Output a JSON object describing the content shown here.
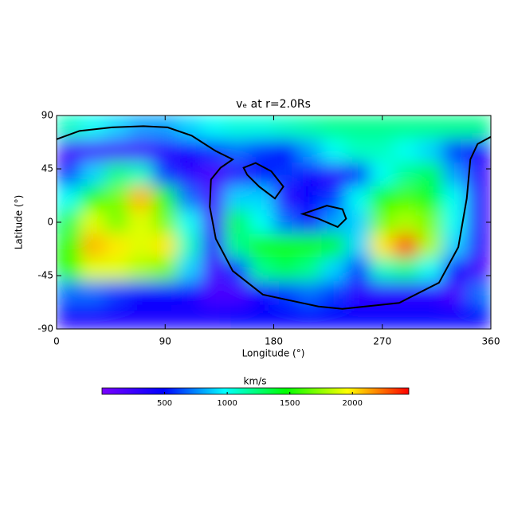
{
  "chart_data": {
    "type": "heatmap",
    "title": "vₑ at r=2.0Rs",
    "x_label": "Longitude (°)",
    "y_label": "Latitude (°)",
    "x": [
      10,
      30,
      50,
      70,
      90,
      110,
      130,
      150,
      170,
      190,
      210,
      230,
      250,
      270,
      290,
      310,
      330,
      350
    ],
    "y": [
      80,
      60,
      40,
      20,
      0,
      -20,
      -40,
      -60,
      -80
    ],
    "values": [
      [
        1100,
        1000,
        900,
        800,
        800,
        900,
        1000,
        1050,
        1050,
        1100,
        1150,
        1200,
        1200,
        1200,
        1200,
        1200,
        1200,
        1200
      ],
      [
        200,
        200,
        200,
        200,
        300,
        400,
        600,
        700,
        600,
        500,
        800,
        1000,
        1100,
        1100,
        1000,
        900,
        600,
        400
      ],
      [
        600,
        900,
        1200,
        1100,
        600,
        300,
        200,
        300,
        500,
        600,
        400,
        300,
        500,
        1000,
        1200,
        1300,
        800,
        300
      ],
      [
        1000,
        1500,
        1700,
        2100,
        1500,
        700,
        200,
        900,
        900,
        300,
        500,
        600,
        1000,
        1500,
        1600,
        1400,
        1000,
        300
      ],
      [
        1300,
        1900,
        1700,
        1900,
        1700,
        1000,
        200,
        1300,
        1000,
        700,
        400,
        800,
        900,
        1700,
        1800,
        1700,
        1000,
        300
      ],
      [
        1500,
        2100,
        2000,
        1900,
        2000,
        1100,
        300,
        1200,
        1500,
        1500,
        1500,
        1400,
        900,
        2000,
        2300,
        1800,
        900,
        300
      ],
      [
        1500,
        1900,
        1900,
        1800,
        1700,
        900,
        200,
        600,
        1200,
        1300,
        1200,
        900,
        600,
        1100,
        1200,
        1000,
        500,
        200
      ],
      [
        700,
        700,
        600,
        500,
        500,
        400,
        200,
        200,
        400,
        600,
        700,
        600,
        300,
        300,
        300,
        300,
        200,
        700
      ],
      [
        400,
        400,
        400,
        400,
        400,
        400,
        400,
        500,
        500,
        500,
        500,
        500,
        500,
        500,
        500,
        500,
        500,
        500
      ]
    ],
    "xlim": [
      0,
      360
    ],
    "ylim": [
      -90,
      90
    ],
    "xticks": [
      0,
      90,
      180,
      270,
      360
    ],
    "yticks": [
      90,
      45,
      0,
      -45,
      -90
    ],
    "colormap": [
      "#7a00ff",
      "#0000ff",
      "#00ffff",
      "#00ff00",
      "#ffff00",
      "#ff0000"
    ],
    "colorbar": {
      "label": "km/s",
      "lim": [
        0,
        2450
      ],
      "ticks": [
        500,
        1000,
        1500,
        2000
      ]
    },
    "contour_color": "#000000",
    "contours": [
      {
        "x": [
          0,
          19,
          46,
          72,
          92,
          112,
          132,
          146,
          136,
          128,
          127,
          132,
          146,
          171,
          217,
          237,
          284,
          317,
          333,
          340,
          343,
          349,
          360
        ],
        "y": [
          70,
          77,
          80,
          81,
          80,
          73,
          60,
          53,
          46,
          36,
          13,
          -14,
          -41,
          -61,
          -71,
          -73,
          -68,
          -51,
          -21,
          20,
          53,
          66,
          72
        ]
      },
      {
        "x": [
          155,
          165,
          178,
          188,
          181,
          168,
          158
        ],
        "y": [
          46,
          50,
          43,
          30,
          20,
          30,
          40
        ]
      },
      {
        "x": [
          204,
          224,
          237,
          240,
          233,
          217
        ],
        "y": [
          7,
          14,
          11,
          3,
          -4,
          3
        ]
      }
    ]
  }
}
